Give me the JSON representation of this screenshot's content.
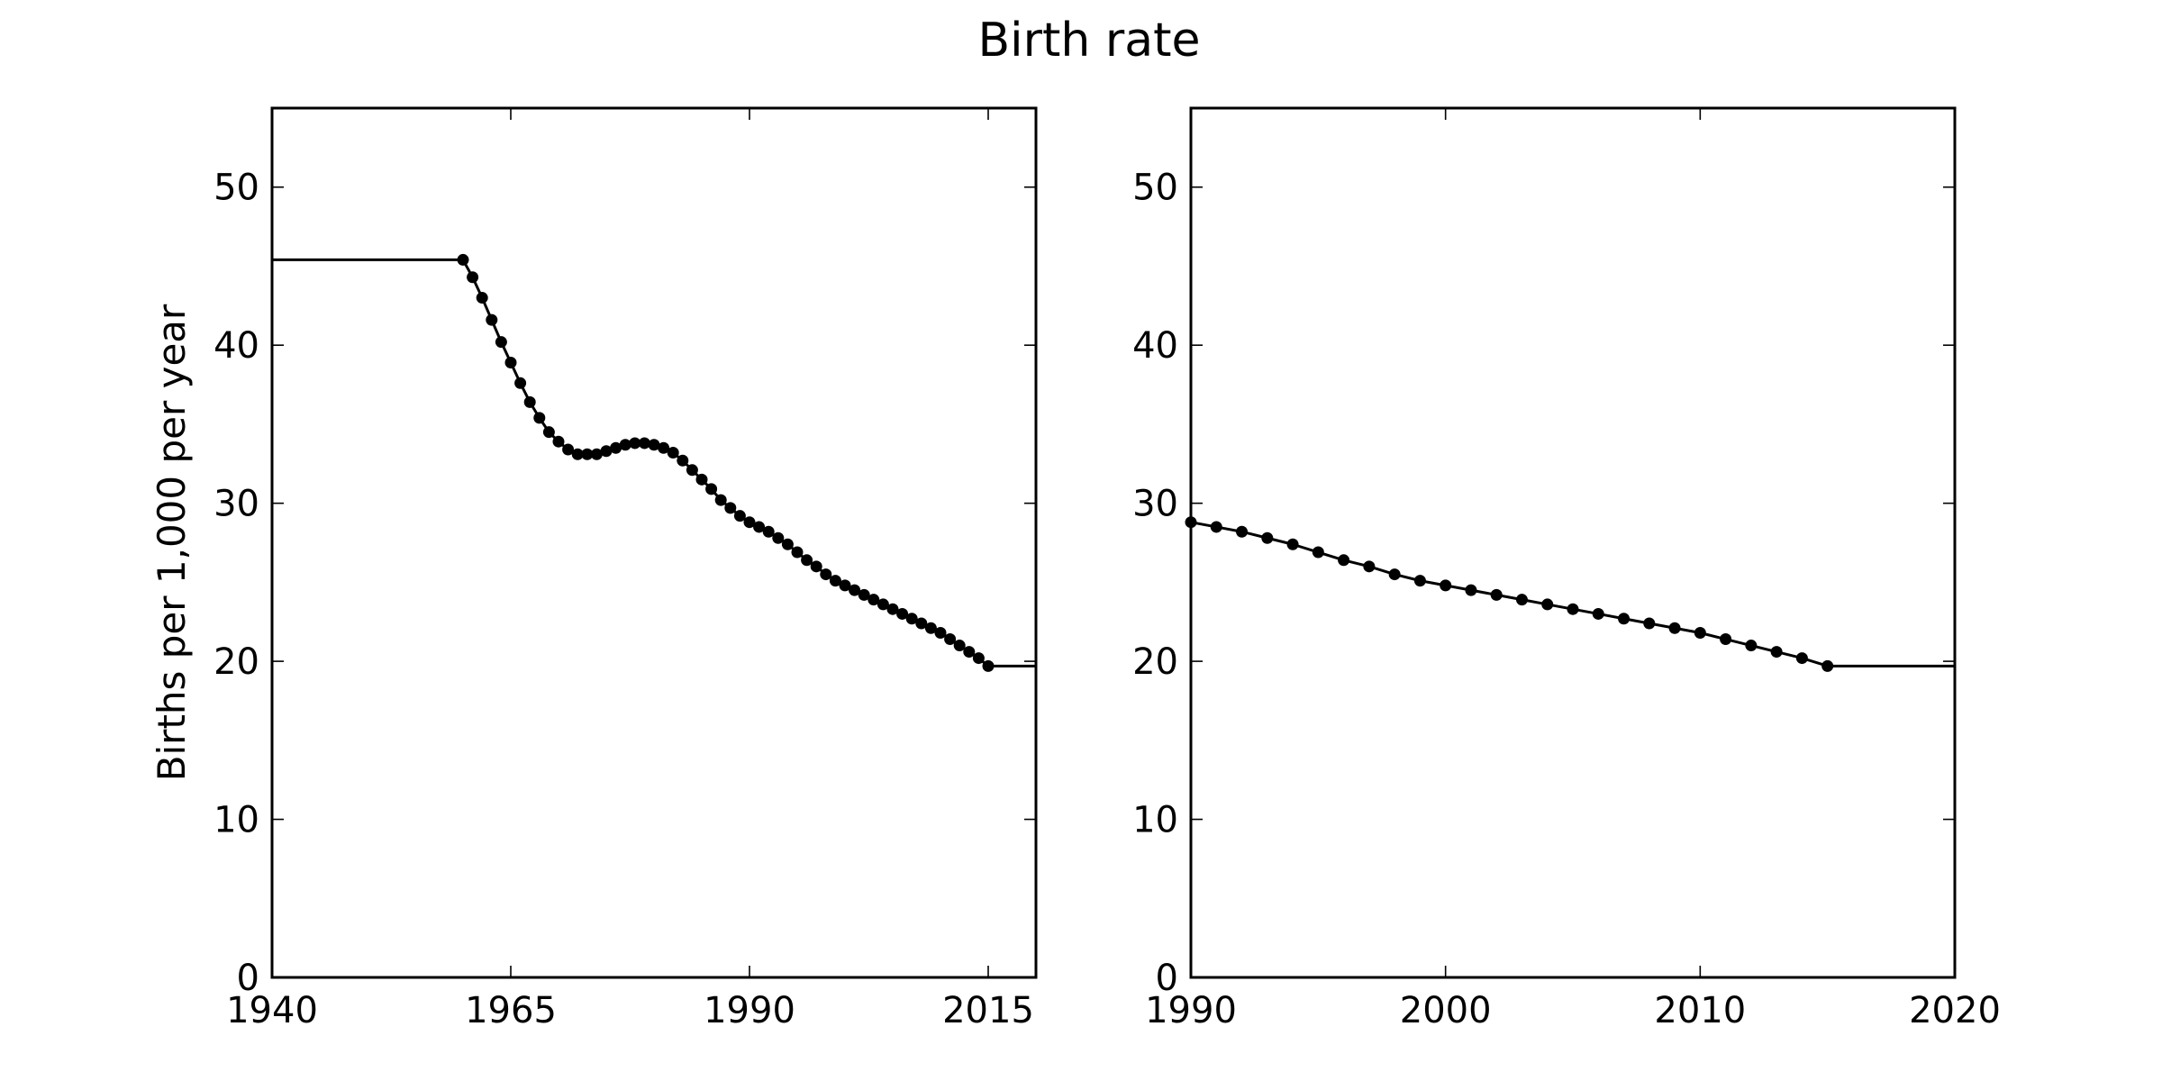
{
  "title": "Birth rate",
  "chart_data": [
    {
      "type": "line",
      "ylabel": "Births per 1,000 per year",
      "xlim": [
        1940,
        2020
      ],
      "ylim": [
        0,
        55
      ],
      "xticks": [
        1940,
        1965,
        1990,
        2015
      ],
      "yticks": [
        0,
        10,
        20,
        30,
        40,
        50
      ],
      "x_tick_labels": [
        "1940",
        "1965",
        "1990",
        "2015"
      ],
      "y_tick_labels": [
        "0",
        "10",
        "20",
        "30",
        "40",
        "50"
      ],
      "grid": false,
      "extension_left": {
        "from": 1940,
        "to": 1960,
        "value": 45.4
      },
      "extension_right": {
        "from": 2015,
        "to": 2020,
        "value": 19.7
      },
      "series": [
        {
          "x": [
            1960,
            1961,
            1962,
            1963,
            1964,
            1965,
            1966,
            1967,
            1968,
            1969,
            1970,
            1971,
            1972,
            1973,
            1974,
            1975,
            1976,
            1977,
            1978,
            1979,
            1980,
            1981,
            1982,
            1983,
            1984,
            1985,
            1986,
            1987,
            1988,
            1989,
            1990,
            1991,
            1992,
            1993,
            1994,
            1995,
            1996,
            1997,
            1998,
            1999,
            2000,
            2001,
            2002,
            2003,
            2004,
            2005,
            2006,
            2007,
            2008,
            2009,
            2010,
            2011,
            2012,
            2013,
            2014,
            2015
          ],
          "values": [
            45.4,
            44.3,
            43.0,
            41.6,
            40.2,
            38.9,
            37.6,
            36.4,
            35.4,
            34.5,
            33.9,
            33.4,
            33.1,
            33.1,
            33.1,
            33.3,
            33.5,
            33.7,
            33.8,
            33.8,
            33.7,
            33.5,
            33.2,
            32.7,
            32.1,
            31.5,
            30.9,
            30.2,
            29.7,
            29.2,
            28.8,
            28.5,
            28.2,
            27.8,
            27.4,
            26.9,
            26.4,
            26.0,
            25.5,
            25.1,
            24.8,
            24.5,
            24.2,
            23.9,
            23.6,
            23.3,
            23.0,
            22.7,
            22.4,
            22.1,
            21.8,
            21.4,
            21.0,
            20.6,
            20.2,
            19.7
          ]
        }
      ]
    },
    {
      "type": "line",
      "xlim": [
        1990,
        2020
      ],
      "ylim": [
        0,
        55
      ],
      "xticks": [
        1990,
        2000,
        2010,
        2020
      ],
      "yticks": [
        0,
        10,
        20,
        30,
        40,
        50
      ],
      "x_tick_labels": [
        "1990",
        "2000",
        "2010",
        "2020"
      ],
      "y_tick_labels": [
        "0",
        "10",
        "20",
        "30",
        "40",
        "50"
      ],
      "grid": false,
      "extension_right": {
        "from": 2015,
        "to": 2020,
        "value": 19.7
      },
      "series": [
        {
          "x": [
            1990,
            1991,
            1992,
            1993,
            1994,
            1995,
            1996,
            1997,
            1998,
            1999,
            2000,
            2001,
            2002,
            2003,
            2004,
            2005,
            2006,
            2007,
            2008,
            2009,
            2010,
            2011,
            2012,
            2013,
            2014,
            2015
          ],
          "values": [
            28.8,
            28.5,
            28.2,
            27.8,
            27.4,
            26.9,
            26.4,
            26.0,
            25.5,
            25.1,
            24.8,
            24.5,
            24.2,
            23.9,
            23.6,
            23.3,
            23.0,
            22.7,
            22.4,
            22.1,
            21.8,
            21.4,
            21.0,
            20.6,
            20.2,
            19.7
          ]
        }
      ]
    }
  ]
}
